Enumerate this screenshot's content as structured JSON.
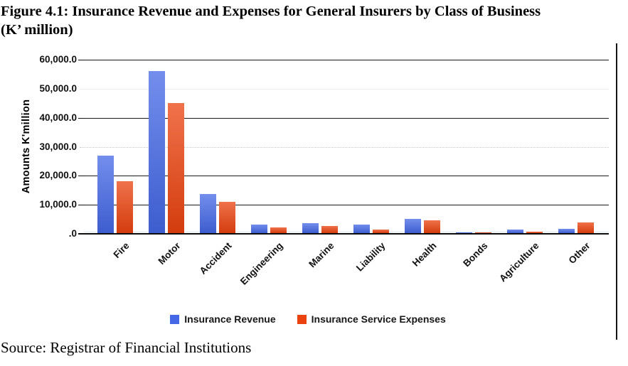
{
  "figure": {
    "title_line1": "Figure 4.1: Insurance Revenue and Expenses for General Insurers by Class of Business",
    "title_line2": "(K’ million)",
    "source": "Source: Registrar of Financial Institutions"
  },
  "chart_data": {
    "type": "bar",
    "title": "Figure 4.1: Insurance Revenue and Expenses for General Insurers by Class of Business (K' million)",
    "categories": [
      "Fire",
      "Motor",
      "Accident",
      "Engineering",
      "Marine",
      "Liability",
      "Health",
      "Bonds",
      "Agriculture",
      "Other"
    ],
    "series": [
      {
        "name": "Insurance Revenue",
        "color": "#4468E6",
        "values": [
          26800,
          55900,
          13500,
          2900,
          3500,
          3000,
          4800,
          100,
          1200,
          1500
        ]
      },
      {
        "name": "Insurance Service Expenses",
        "color": "#EB430F",
        "values": [
          17800,
          44900,
          10900,
          2000,
          2500,
          1200,
          4300,
          300,
          400,
          3700
        ]
      }
    ],
    "xlabel": "",
    "ylabel": "Amounts  K'million",
    "ylim": [
      0,
      60000
    ],
    "yticks": [
      {
        "value": 60000,
        "label": "60,000.0"
      },
      {
        "value": 50000,
        "label": "50,000.0"
      },
      {
        "value": 40000,
        "label": "40,000.0"
      },
      {
        "value": 30000,
        "label": "30,000.0"
      },
      {
        "value": 20000,
        "label": "20,000.0"
      },
      {
        "value": 10000,
        "label": "10,000.0"
      },
      {
        "value": 0,
        "label": ".0"
      }
    ],
    "grid": "horizontal",
    "legend_position": "bottom"
  }
}
